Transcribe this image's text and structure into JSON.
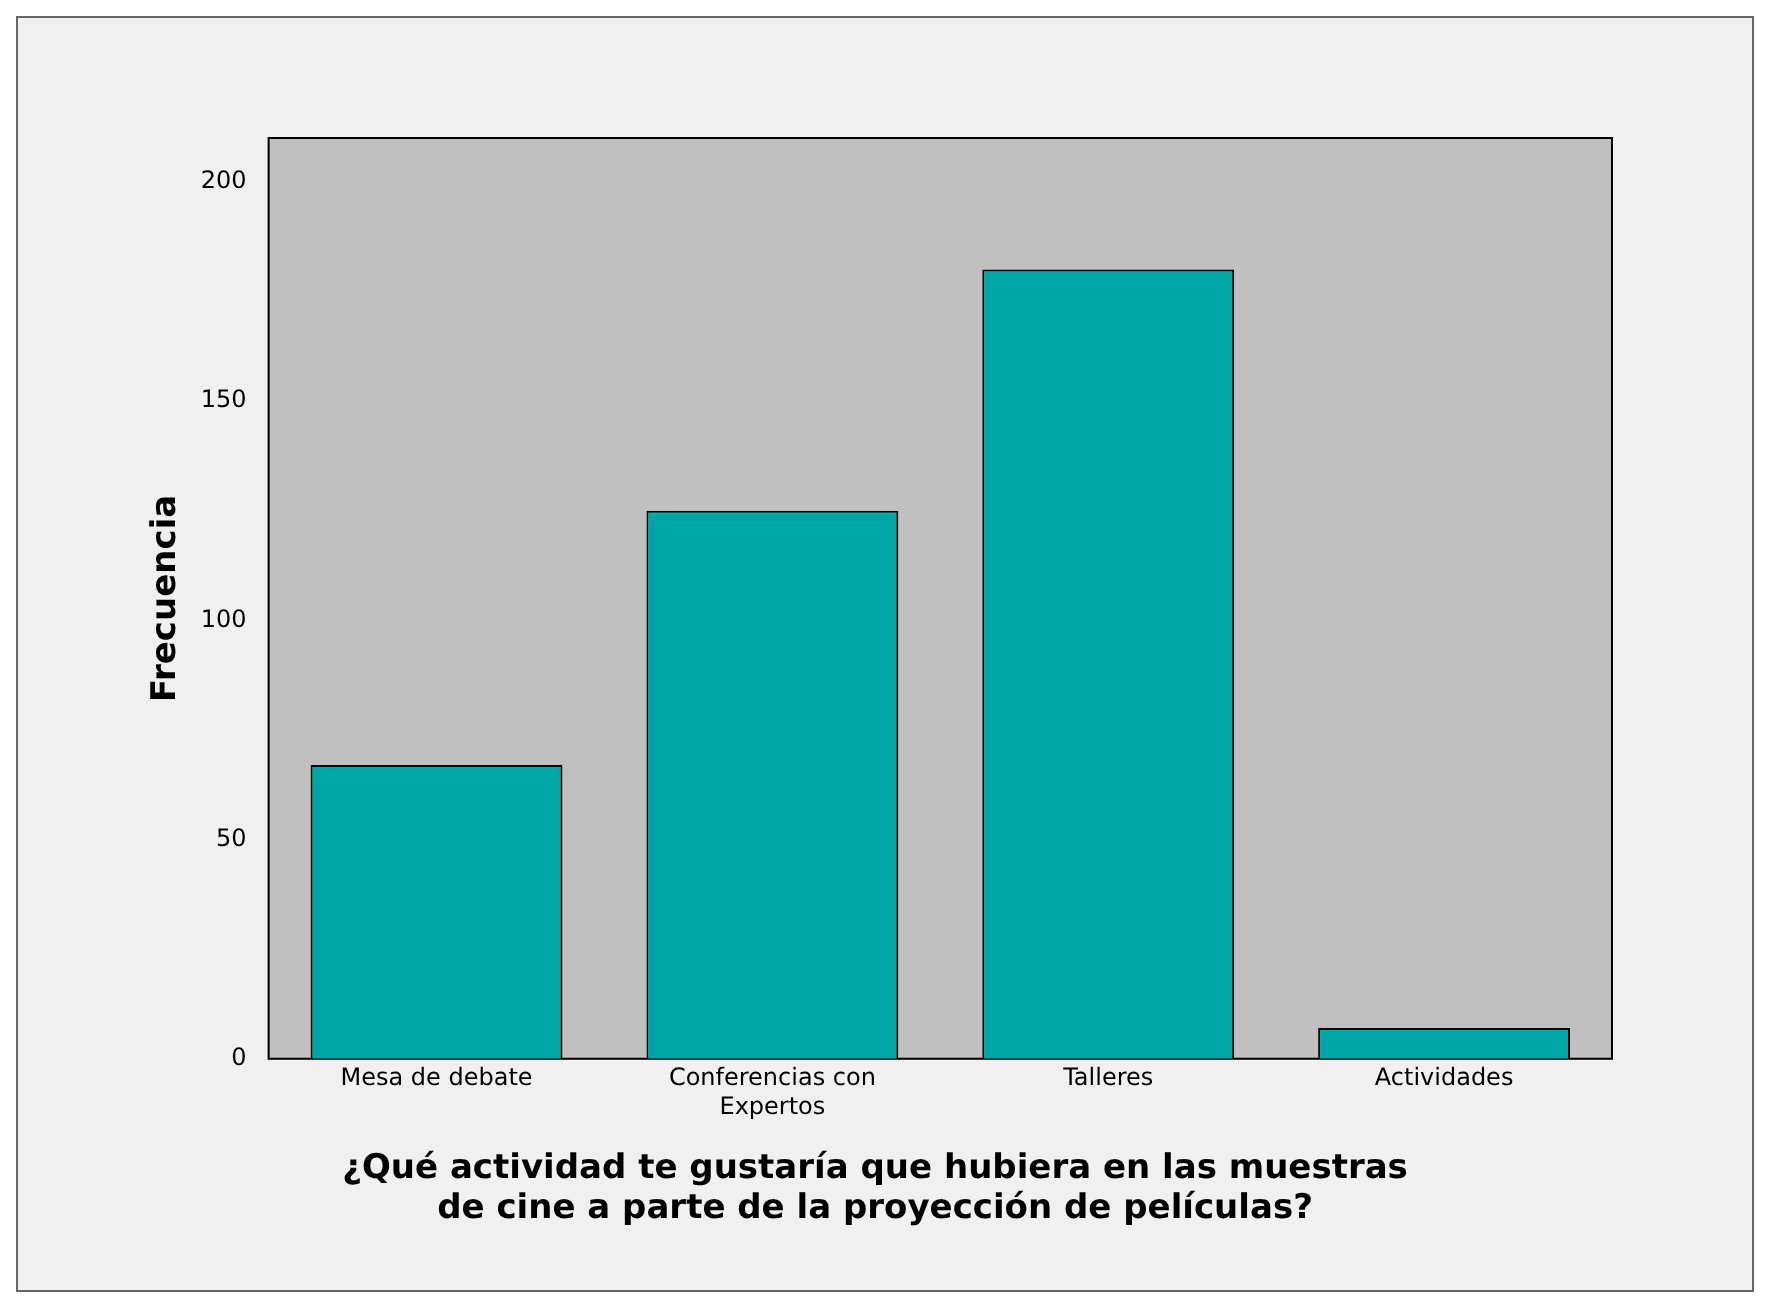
{
  "chart_data": {
    "type": "bar",
    "xlabel": "¿Qué actividad te gustaría que hubiera en las muestras\nde cine a parte de la proyección de películas?",
    "ylabel": "Frecuencia",
    "categories": [
      "Mesa de debate",
      "Conferencias con Expertos",
      "Talleres",
      "Actividades"
    ],
    "values": [
      67,
      125,
      180,
      7
    ],
    "color": "#00a6a6",
    "ylim": [
      0,
      210
    ],
    "yticks": [
      0,
      50,
      100,
      150,
      200
    ],
    "grid": false,
    "legend": false
  }
}
